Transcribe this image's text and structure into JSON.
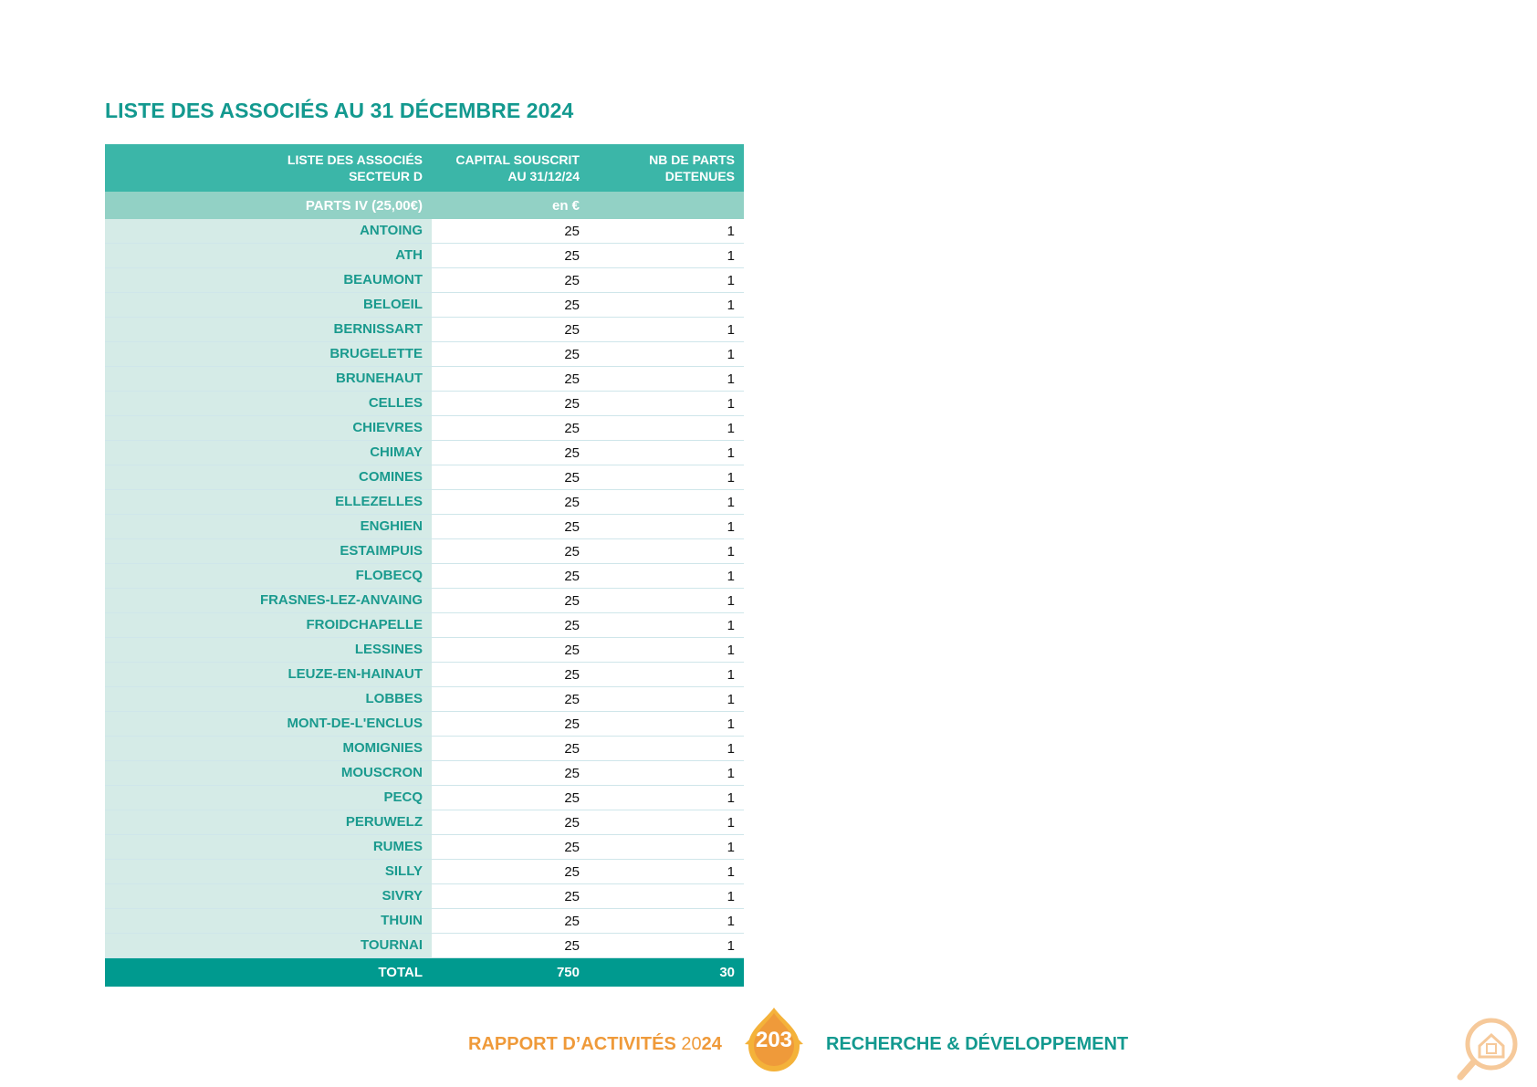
{
  "title": "LISTE DES ASSOCIÉS AU 31 DÉCEMBRE 2024",
  "table": {
    "headers": [
      [
        "LISTE DES ASSOCIÉS",
        "SECTEUR D"
      ],
      [
        "CAPITAL SOUSCRIT",
        "AU 31/12/24"
      ],
      [
        "NB DE PARTS",
        "DETENUES"
      ]
    ],
    "subheader": [
      "PARTS IV (25,00€)",
      "en €",
      ""
    ],
    "rows": [
      {
        "name": "ANTOING",
        "capital": "25",
        "parts": "1"
      },
      {
        "name": "ATH",
        "capital": "25",
        "parts": "1"
      },
      {
        "name": "BEAUMONT",
        "capital": "25",
        "parts": "1"
      },
      {
        "name": "BELOEIL",
        "capital": "25",
        "parts": "1"
      },
      {
        "name": "BERNISSART",
        "capital": "25",
        "parts": "1"
      },
      {
        "name": "BRUGELETTE",
        "capital": "25",
        "parts": "1"
      },
      {
        "name": "BRUNEHAUT",
        "capital": "25",
        "parts": "1"
      },
      {
        "name": "CELLES",
        "capital": "25",
        "parts": "1"
      },
      {
        "name": "CHIEVRES",
        "capital": "25",
        "parts": "1"
      },
      {
        "name": "CHIMAY",
        "capital": "25",
        "parts": "1"
      },
      {
        "name": "COMINES",
        "capital": "25",
        "parts": "1"
      },
      {
        "name": "ELLEZELLES",
        "capital": "25",
        "parts": "1"
      },
      {
        "name": "ENGHIEN",
        "capital": "25",
        "parts": "1"
      },
      {
        "name": "ESTAIMPUIS",
        "capital": "25",
        "parts": "1"
      },
      {
        "name": "FLOBECQ",
        "capital": "25",
        "parts": "1"
      },
      {
        "name": "FRASNES-LEZ-ANVAING",
        "capital": "25",
        "parts": "1"
      },
      {
        "name": "FROIDCHAPELLE",
        "capital": "25",
        "parts": "1"
      },
      {
        "name": "LESSINES",
        "capital": "25",
        "parts": "1"
      },
      {
        "name": "LEUZE-EN-HAINAUT",
        "capital": "25",
        "parts": "1"
      },
      {
        "name": "LOBBES",
        "capital": "25",
        "parts": "1"
      },
      {
        "name": "MONT-DE-L'ENCLUS",
        "capital": "25",
        "parts": "1"
      },
      {
        "name": "MOMIGNIES",
        "capital": "25",
        "parts": "1"
      },
      {
        "name": "MOUSCRON",
        "capital": "25",
        "parts": "1"
      },
      {
        "name": "PECQ",
        "capital": "25",
        "parts": "1"
      },
      {
        "name": "PERUWELZ",
        "capital": "25",
        "parts": "1"
      },
      {
        "name": "RUMES",
        "capital": "25",
        "parts": "1"
      },
      {
        "name": "SILLY",
        "capital": "25",
        "parts": "1"
      },
      {
        "name": "SIVRY",
        "capital": "25",
        "parts": "1"
      },
      {
        "name": "THUIN",
        "capital": "25",
        "parts": "1"
      },
      {
        "name": "TOURNAI",
        "capital": "25",
        "parts": "1"
      }
    ],
    "total": {
      "label": "TOTAL",
      "capital": "750",
      "parts": "30"
    }
  },
  "footer": {
    "left_prefix": "RAPPORT D’ACTIVITÉS ",
    "year_light": "20",
    "year_bold": "24",
    "page_number": "203",
    "right": "RECHERCHE & DÉVELOPPEMENT"
  },
  "colors": {
    "accent_teal": "#13998f",
    "header_teal": "#3bb6a8",
    "subheader_teal": "#92d1c5",
    "name_cell_bg": "#d5ebe7",
    "total_bg": "#009a8f",
    "orange": "#ef9a3a"
  },
  "icons": [
    "page-number-drop-icon",
    "house-search-icon"
  ]
}
